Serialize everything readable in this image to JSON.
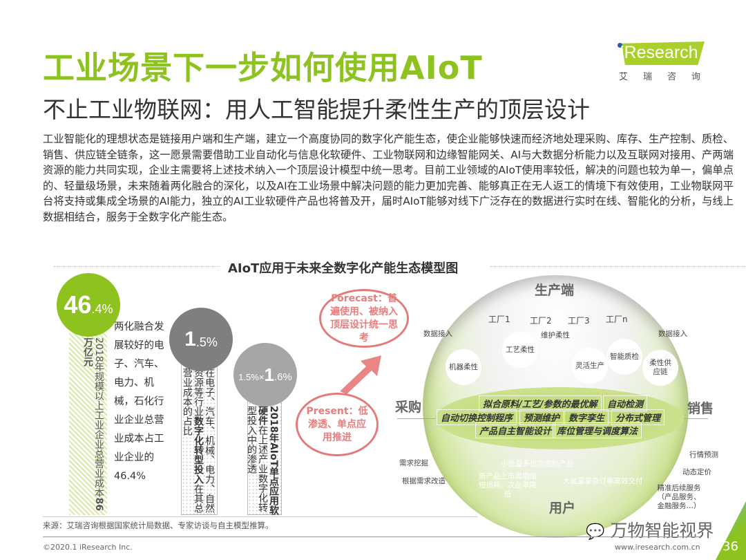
{
  "header": {
    "title": "工业场景下一步如何使用AIoT",
    "subtitle": "不止工业物联网：用人工智能提升柔性生产的顶层设计"
  },
  "logo": {
    "brand": "iResearch",
    "cn": "艾瑞咨询"
  },
  "body_text": "工业智能化的理想状态是链接用户端和生产端，建立一个高度协同的数字化产能生态，使企业能够快速而经济地处理采购、库存、生产控制、质检、销售、供应链全链条，这一愿景需要借助工业自动化与信息化软硬件、工业物联网和边缘智能网关、AI与大数据分析能力以及互联网对接用、产两端资源的能力共同实现，企业主需要将上述技术纳入一个顶层设计模型中统一思考。目前工业领域的AIoT使用率较低，解决的问题也较为单一，偏单点的、轻量级场景，未来随着两化融合的深化，以及AI在工业场景中解决问题的能力更加完善、能够真正在无人返工的情境下有效使用，工业物联网平台将支持或集成全场景的AI能力，独立的AI工业软硬件产品也将普及开，届时AIoT能够对线下广泛存在的数据进行实时在线、智能化的分析，与线上数据相结合，服务于全数字化产能生态。",
  "diagram_title": "AIoT应用于未来全数字化产能生态模型图",
  "stats": [
    {
      "big": "46",
      "small": ".4%",
      "bar_text": "2018年规模以上工业企业总营业成本",
      "bar_bold": "86万亿元",
      "color": "#8dc21f"
    },
    {
      "big": "1",
      "small": ".5%",
      "bar_text": "在电子、汽车、机械、电力、自然资源等行业",
      "bar_bold": "数字化转型投入",
      "bar_text2": "在其总营业成本的占比",
      "color": "#7f7f7f"
    },
    {
      "prefix": "1.5%×",
      "big": "1",
      "small": ".6%",
      "bar_bold": "2018年AIoT单点应用软硬件",
      "bar_text": "在上述产业数字化转型投入中的渗透",
      "color": "#a6a6a6"
    }
  ],
  "stat1_desc": "两化融合发展较好的电子、汽车、电力、机械，石化行业企业总营业成本占工业企业的46.4%",
  "forecast": "Forecast：普遍使用、被纳入顶层设计统一思考",
  "present": "Present：低渗透、单点应用推进",
  "model": {
    "top": "生产端",
    "bottom": "用户",
    "left": "采购",
    "right": "销售",
    "factories": [
      "工厂1",
      "工厂2",
      "工厂3",
      "工厂n"
    ],
    "data_in_left": "数据接入",
    "data_in_right": "数据接入",
    "nodes": [
      "机器柔性",
      "工艺柔性",
      "维护柔性",
      "灵活生产",
      "智能质检",
      "柔性供应链"
    ],
    "tags": [
      "拟合原料/工艺/参数的最优解",
      "自动检测",
      "自动切换控制程序",
      "预测维护",
      "数字孪生",
      "分布式管理",
      "产品自主智能设计",
      "库位管理与调度算法"
    ],
    "left_labels": [
      "需求挖掘",
      "根据需求改造"
    ],
    "right_labels": [
      "行情预测",
      "动态定价",
      "精准后续服务（产品服务、金融服务…）"
    ],
    "bottom_labels": [
      "小批量多批次定制产品",
      "新产品上市周期缩短损耗、次品率降低",
      "大批量复杂订单高效交付"
    ]
  },
  "footer": {
    "source": "来源：艾瑞咨询根据国家统计局数据、专家访谈与自主模型推算。",
    "copyright": "©2020.1 iResearch Inc.",
    "website": "www.iresearch.com.cn",
    "page": "36",
    "watermark": "万物智能视界"
  },
  "colors": {
    "accent": "#8dc21f",
    "forecast": "#e57a7a"
  }
}
